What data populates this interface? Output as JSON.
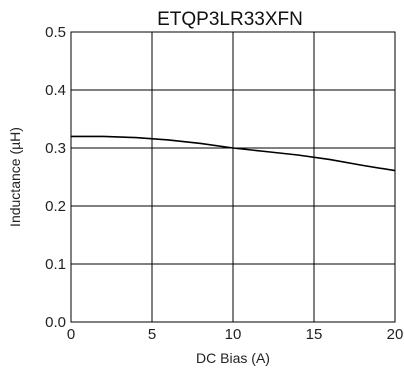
{
  "chart_data": {
    "type": "line",
    "title": "ETQP3LR33XFN",
    "xlabel": "DC Bias (A)",
    "ylabel": "Inductance (µH)",
    "xlim": [
      0,
      20
    ],
    "ylim": [
      0.0,
      0.5
    ],
    "xticks": [
      "0",
      "5",
      "10",
      "15",
      "20"
    ],
    "yticks": [
      "0.0",
      "0.1",
      "0.2",
      "0.3",
      "0.4",
      "0.5"
    ],
    "grid": true,
    "legend": "none",
    "series": [
      {
        "x": [
          0,
          2,
          4,
          6,
          8,
          10,
          12,
          14,
          16,
          18,
          20
        ],
        "values": [
          0.32,
          0.32,
          0.318,
          0.314,
          0.308,
          0.3,
          0.294,
          0.288,
          0.28,
          0.27,
          0.261
        ],
        "color": "#000000"
      }
    ]
  }
}
